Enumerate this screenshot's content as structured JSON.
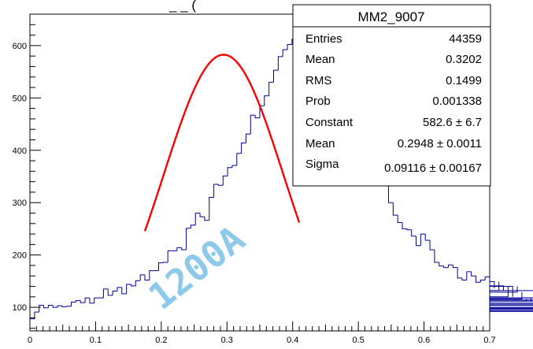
{
  "chart_data": {
    "type": "bar",
    "title": "_ _ (",
    "xlim": [
      0,
      0.7
    ],
    "ylim": [
      55,
      660
    ],
    "x_ticks": [
      "0",
      "0.1",
      "0.2",
      "0.3",
      "0.4",
      "0.5",
      "0.6",
      "0.7"
    ],
    "y_ticks": [
      "100",
      "200",
      "300",
      "400",
      "500",
      "600"
    ],
    "bin_width": 0.007,
    "histogram": {
      "name": "MM2_9007",
      "color": "#000099",
      "values": [
        78,
        91,
        104,
        99,
        104,
        100,
        103,
        101,
        102,
        110,
        113,
        109,
        118,
        108,
        118,
        118,
        135,
        123,
        131,
        138,
        126,
        144,
        141,
        151,
        162,
        152,
        170,
        170,
        185,
        186,
        208,
        208,
        214,
        210,
        251,
        257,
        280,
        273,
        266,
        310,
        335,
        333,
        351,
        367,
        371,
        394,
        414,
        431,
        467,
        462,
        485,
        504,
        530,
        553,
        579,
        592,
        602,
        612,
        618,
        629,
        646,
        621,
        612,
        596,
        631,
        579,
        563,
        548,
        521,
        490,
        470,
        450,
        436,
        420,
        389,
        402,
        368,
        336,
        300,
        276,
        262,
        250,
        248,
        236,
        218,
        240,
        228,
        210,
        186,
        179,
        176,
        181,
        176,
        156,
        152,
        168,
        160,
        148,
        152,
        158,
        136,
        149,
        132,
        141,
        120,
        140,
        129,
        116,
        112,
        118,
        108,
        132,
        104,
        118,
        112,
        104,
        96,
        114,
        100,
        106,
        112,
        100,
        98,
        98,
        94,
        92
      ]
    },
    "fit": {
      "type": "gaus",
      "color": "#ff0000",
      "constant": 582.6,
      "mean": 0.2948,
      "sigma": 0.09116,
      "x_range": [
        0.175,
        0.41
      ]
    },
    "stats_box": {
      "title": "MM2_9007",
      "rows": [
        {
          "label": "Entries",
          "value": "44359"
        },
        {
          "label": "Mean",
          "value": "0.3202"
        },
        {
          "label": "RMS",
          "value": "0.1499"
        },
        {
          "label": "Prob",
          "value": "0.001338"
        },
        {
          "label": "Constant",
          "value": "582.6 ± 6.7"
        },
        {
          "label": "Mean",
          "value": "0.2948 ± 0.0011"
        },
        {
          "label": "Sigma",
          "value": "0.09116 ± 0.00167"
        }
      ]
    },
    "watermark": "1200A",
    "watermark_color": "#8ec9ec"
  }
}
